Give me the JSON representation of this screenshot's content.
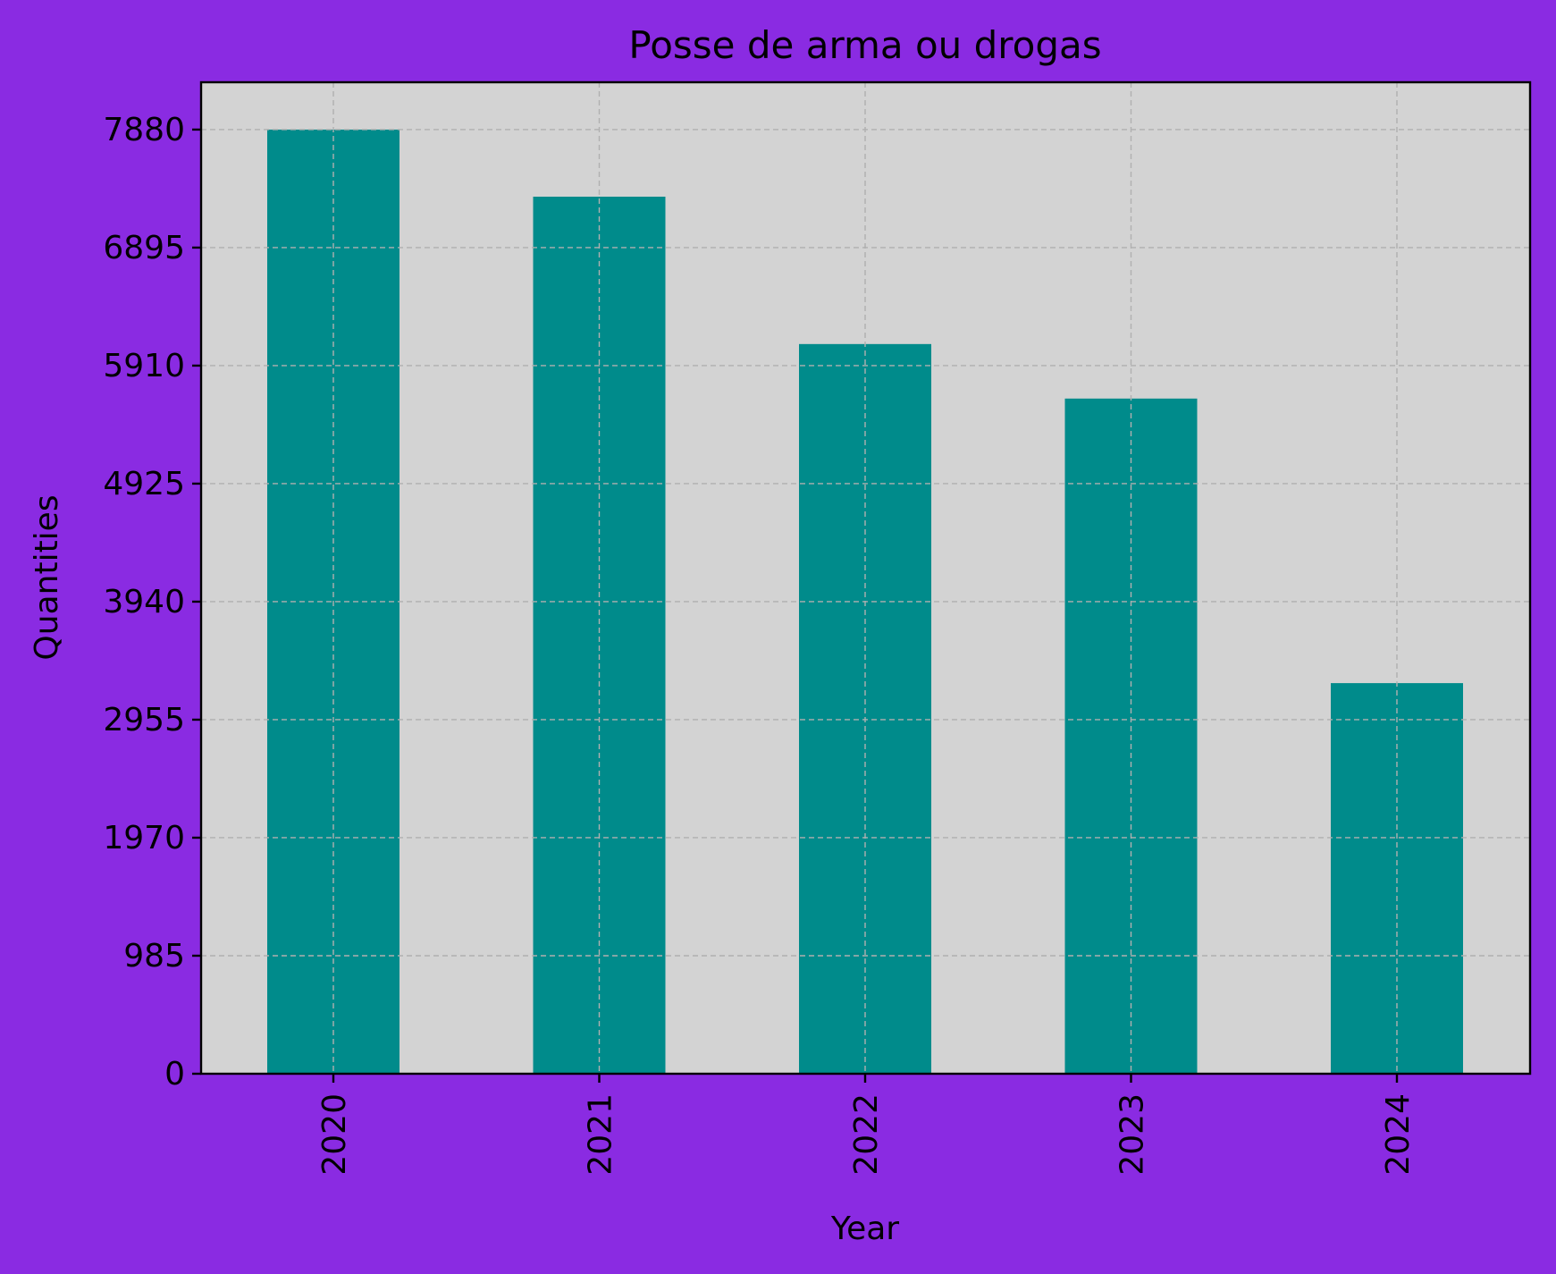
{
  "chart_data": {
    "type": "bar",
    "title": "Posse de arma ou drogas",
    "xlabel": "Year",
    "ylabel": "Quantities",
    "categories": [
      "2020",
      "2021",
      "2022",
      "2023",
      "2024"
    ],
    "values": [
      7880,
      7320,
      6090,
      5635,
      3260
    ],
    "ylim": [
      0,
      8275
    ],
    "yticks": [
      0,
      985,
      1970,
      2955,
      3940,
      4925,
      5910,
      6895,
      7880
    ],
    "ytick_labels": [
      "0",
      "985",
      "1970",
      "2955",
      "3940",
      "4925",
      "5910",
      "6895",
      "7880"
    ],
    "xtick_rotation": "vertical",
    "grid": true,
    "legend": false,
    "colors": {
      "background": "#8a2be2",
      "plot_background": "#d3d3d3",
      "bar": "#008b8b",
      "grid": "#b0b0b0"
    }
  }
}
